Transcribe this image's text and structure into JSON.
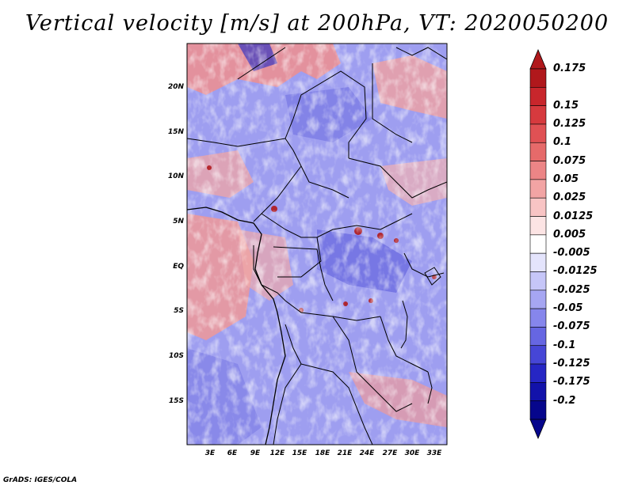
{
  "title": "Vertical velocity [m/s] at 200hPa, VT: 2020050200",
  "credit": "GrADS: IGES/COLA",
  "map": {
    "variable": "Vertical velocity",
    "units": "m/s",
    "level": "200hPa",
    "valid_time": "2020050200",
    "lat_labels": [
      "20N",
      "15N",
      "10N",
      "5N",
      "EQ",
      "5S",
      "10S",
      "15S"
    ],
    "lon_labels": [
      "3E",
      "6E",
      "9E",
      "12E",
      "15E",
      "18E",
      "21E",
      "24E",
      "27E",
      "30E",
      "33E"
    ]
  },
  "colorbar": {
    "labels": [
      "0.175",
      "0.15",
      "0.125",
      "0.1",
      "0.075",
      "0.05",
      "0.025",
      "0.0125",
      "0.005",
      "-0.005",
      "-0.0125",
      "-0.025",
      "-0.05",
      "-0.075",
      "-0.1",
      "-0.125",
      "-0.175",
      "-0.2"
    ],
    "colors": [
      "#b0181c",
      "#c8262c",
      "#d63a3e",
      "#e05154",
      "#e66a6a",
      "#ec8586",
      "#f2a4a4",
      "#f8c4c4",
      "#fce4e4",
      "#ffffff",
      "#e4e4fc",
      "#c6c6f8",
      "#a6a6f2",
      "#8686ec",
      "#6666e2",
      "#4646d6",
      "#2626c4",
      "#1212aa",
      "#06068c"
    ],
    "top_color": "#b0181c",
    "bottom_color": "#06068c"
  }
}
